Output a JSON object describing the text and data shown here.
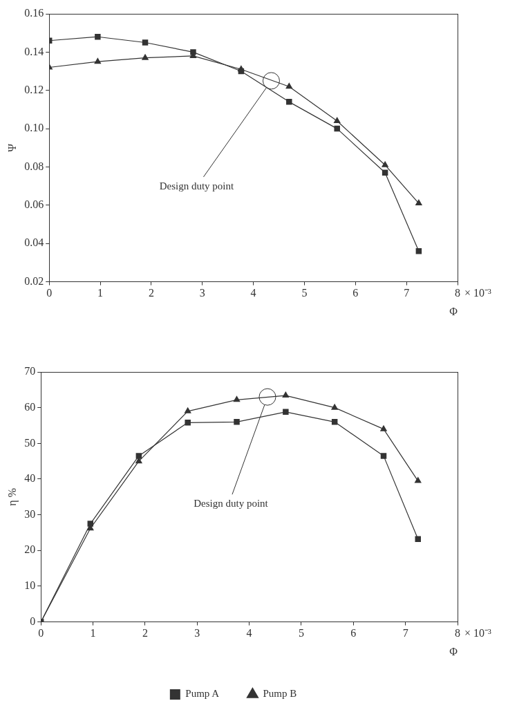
{
  "chart_data": [
    {
      "type": "line",
      "xlabel": "Φ",
      "ylabel": "Ψ",
      "x": [
        0,
        0.95,
        1.88,
        2.82,
        3.76,
        4.7,
        5.64,
        6.58,
        7.24
      ],
      "series": [
        {
          "color": "#333333",
          "marker": "square",
          "values": [
            0.146,
            0.148,
            0.145,
            0.14,
            0.13,
            0.114,
            0.1,
            0.077,
            0.036
          ]
        },
        {
          "color": "#333333",
          "marker": "triangle",
          "values": [
            0.132,
            0.135,
            0.137,
            0.138,
            0.131,
            0.122,
            0.104,
            0.081,
            0.061
          ]
        },
        {
          "type": "scatter",
          "color": "#ffffff",
          "marker": "circle",
          "x": [
            4.35
          ],
          "values": [
            0.125
          ]
        }
      ],
      "xlim": [
        0,
        8
      ],
      "xticks": [
        0,
        1,
        2,
        3,
        4,
        5,
        6,
        7,
        8
      ],
      "ylim": [
        0.02,
        0.16
      ],
      "yticks": [
        0.02,
        0.04,
        0.06,
        {
          "value": 0.08,
          "label": "0.08"
        },
        {
          "value": 0.1,
          "label": "0.10"
        },
        0.12,
        0.14,
        0.16
      ],
      "annotations": [
        {
          "text": "Design duty point",
          "x": 4.35,
          "y": 0.125
        },
        "× 10⁻³"
      ],
      "grid": false,
      "legend": false
    },
    {
      "type": "line",
      "xlabel": "Φ",
      "ylabel": "η %",
      "x": [
        0,
        0.95,
        1.88,
        2.82,
        3.76,
        4.7,
        5.64,
        6.58,
        7.24
      ],
      "series": [
        {
          "name": "Pump A",
          "color": "#333333",
          "marker": "square",
          "values": [
            0,
            27.5,
            46.5,
            55.8,
            56,
            58.8,
            56,
            46.5,
            23.2
          ]
        },
        {
          "name": "Pump B",
          "color": "#333333",
          "marker": "triangle",
          "values": [
            0,
            26.2,
            45,
            59,
            62.2,
            63.4,
            60,
            54,
            39.5
          ]
        },
        {
          "type": "scatter",
          "color": "#ffffff",
          "marker": "circle",
          "x": [
            4.35
          ],
          "values": [
            63
          ]
        }
      ],
      "xlim": [
        0,
        8
      ],
      "xticks": [
        0,
        1,
        2,
        3,
        4,
        5,
        6,
        7,
        8
      ],
      "ylim": [
        0,
        70
      ],
      "yticks": [
        0,
        10,
        20,
        30,
        40,
        50,
        60,
        70
      ],
      "annotations": [
        {
          "text": "Design duty point",
          "x": 4.35,
          "y": 63
        },
        "× 10⁻³"
      ],
      "grid": false,
      "legend": "bottom"
    }
  ]
}
